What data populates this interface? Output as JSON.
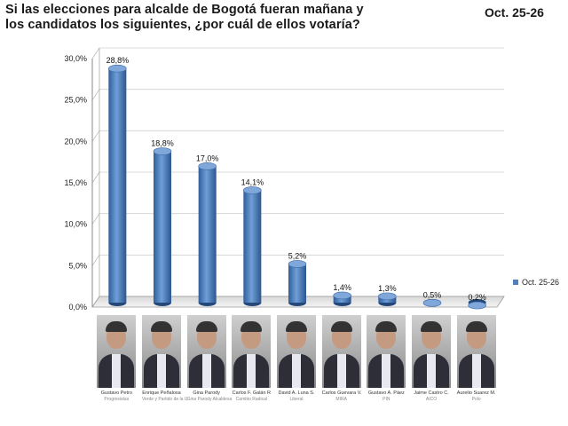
{
  "header": {
    "title_line1": "Si las elecciones para alcalde de Bogotá fueran mañana y",
    "title_line2": "los candidatos los siguientes, ¿por cuál de ellos votaría?",
    "date": "Oct. 25-26"
  },
  "legend": {
    "label": "Oct. 25-26",
    "color": "#4f81bd"
  },
  "chart_data": {
    "type": "bar",
    "categories": [
      "Gustavo Petro",
      "Enrique Peñalosa",
      "Gina Parody",
      "Carlos F. Galán R",
      "David A. Luna S.",
      "Carlos Guevara V.",
      "Gustavo A. Páez",
      "Jaime Castro C.",
      "Aurelio Suarez M."
    ],
    "series": [
      {
        "name": "Oct. 25-26",
        "values": [
          28.8,
          18.8,
          17.0,
          14.1,
          5.2,
          1.4,
          1.3,
          0.5,
          0.2
        ]
      }
    ],
    "data_labels": [
      "28,8%",
      "18,8%",
      "17,0%",
      "14,1%",
      "5,2%",
      "1,4%",
      "1,3%",
      "0,5%",
      "0,2%"
    ],
    "y_ticks": [
      0,
      5,
      10,
      15,
      20,
      25,
      30
    ],
    "y_tick_labels": [
      "0,0%",
      "5,0%",
      "10,0%",
      "15,0%",
      "20,0%",
      "25,0%",
      "30,0%"
    ],
    "ylim": [
      0,
      30
    ],
    "grid": true,
    "legend_position": "right",
    "bar_color": "#4f81bd"
  },
  "candidates": [
    {
      "name": "Gustavo Petro",
      "party": "Progresistas"
    },
    {
      "name": "Enrique Peñalosa",
      "party": "Verde y Partido de la U"
    },
    {
      "name": "Gina Parody",
      "party": "Gina Parody Alcaldesa"
    },
    {
      "name": "Carlos F. Galán R",
      "party": "Cambio Radical"
    },
    {
      "name": "David A. Luna S.",
      "party": "Liberal"
    },
    {
      "name": "Carlos Guevara V.",
      "party": "MIRA"
    },
    {
      "name": "Gustavo A. Páez",
      "party": "PIN"
    },
    {
      "name": "Jaime Castro C.",
      "party": "AICO"
    },
    {
      "name": "Aurelio Suarez M.",
      "party": "Polo"
    }
  ]
}
